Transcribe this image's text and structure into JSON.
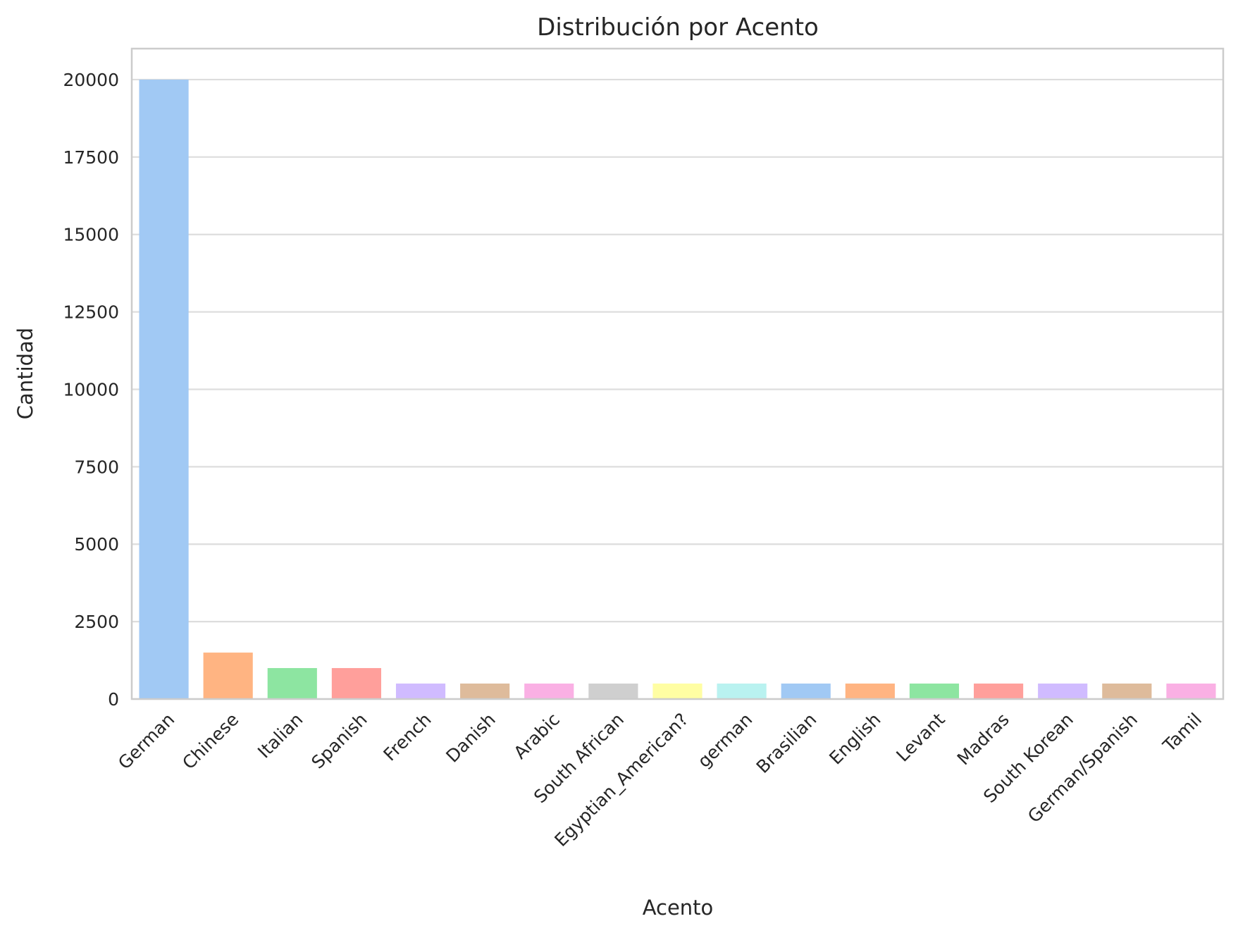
{
  "chart_data": {
    "type": "bar",
    "title": "Distribución por Acento",
    "xlabel": "Acento",
    "ylabel": "Cantidad",
    "categories": [
      "German",
      "Chinese",
      "Italian",
      "Spanish",
      "French",
      "Danish",
      "Arabic",
      "South African",
      "Egyptian_American?",
      "german",
      "Brasilian",
      "English",
      "Levant",
      "Madras",
      "South Korean",
      "German/Spanish",
      "Tamil"
    ],
    "values": [
      20000,
      1500,
      1000,
      1000,
      500,
      500,
      500,
      500,
      500,
      500,
      500,
      500,
      500,
      500,
      500,
      500,
      500
    ],
    "colors": [
      "#a1c9f4",
      "#ffb482",
      "#8de5a1",
      "#ff9f9b",
      "#d0bbff",
      "#debb9b",
      "#fab0e4",
      "#cfcfcf",
      "#fffea3",
      "#b9f2f0",
      "#a1c9f4",
      "#ffb482",
      "#8de5a1",
      "#ff9f9b",
      "#d0bbff",
      "#debb9b",
      "#fab0e4"
    ],
    "ylim": [
      0,
      21000
    ],
    "yticks": [
      0,
      2500,
      5000,
      7500,
      10000,
      12500,
      15000,
      17500,
      20000
    ],
    "grid": "horizontal",
    "legend": "none"
  }
}
